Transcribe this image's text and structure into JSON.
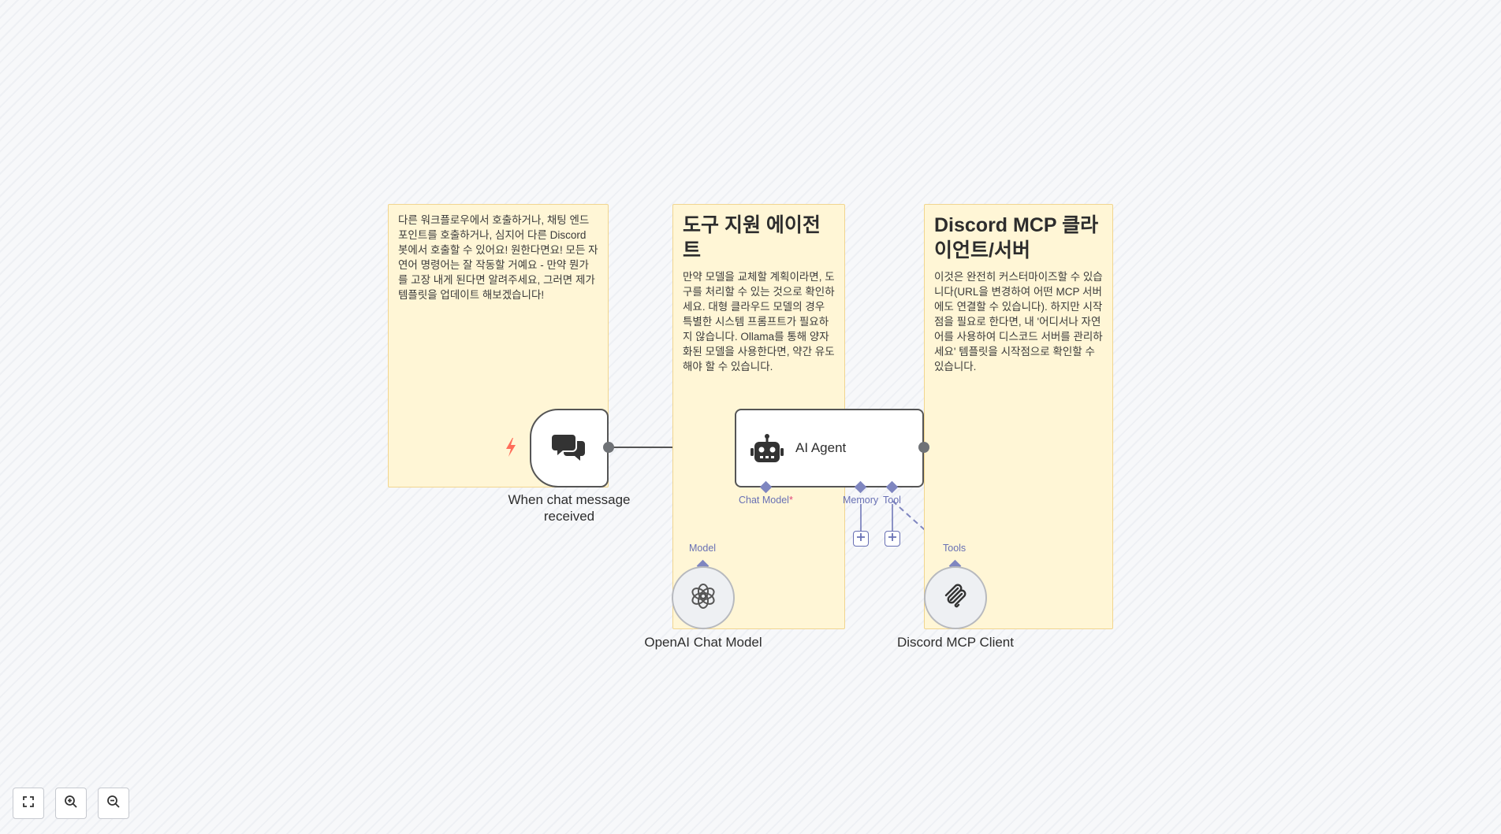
{
  "notes": {
    "trigger_note": {
      "body": "다른 워크플로우에서 호출하거나, 채팅 엔드포인트를 호출하거나, 심지어 다른 Discord 봇에서 호출할 수 있어요! 원한다면요! 모든 자연어 명령어는 잘 작동할 거예요 - 만약 뭔가를 고장 내게 된다면 알려주세요, 그러면 제가 템플릿을 업데이트 해보겠습니다!"
    },
    "agent_note": {
      "heading": "도구 지원 에이전트",
      "body": "만약 모델을 교체할 계획이라면, 도구를 처리할 수 있는 것으로 확인하세요. 대형 클라우드 모델의 경우 특별한 시스템 프롬프트가 필요하지 않습니다. Ollama를 통해 양자화된 모델을 사용한다면, 약간 유도해야 할 수 있습니다."
    },
    "mcp_note": {
      "heading": "Discord MCP 클라이언트/서버",
      "body": "이것은 완전히 커스터마이즈할 수 있습니다(URL을 변경하여 어떤 MCP 서버에도 연결할 수 있습니다). 하지만 시작점을 필요로 한다면, 내 '어디서나 자연어를 사용하여 디스코드 서버를 관리하세요' 템플릿을 시작점으로 확인할 수 있습니다."
    }
  },
  "nodes": {
    "chat_trigger": {
      "label": "When chat message received",
      "icon": "chat-bubbles-icon",
      "badge_icon": "lightning-icon"
    },
    "ai_agent": {
      "label": "AI Agent",
      "icon": "robot-icon",
      "ports": {
        "chat_model": "Chat Model",
        "chat_model_required": "*",
        "memory": "Memory",
        "tool": "Tool"
      }
    },
    "openai_model": {
      "label": "OpenAI Chat Model",
      "icon": "openai-icon",
      "port_label": "Model"
    },
    "mcp_client": {
      "label": "Discord MCP Client",
      "icon": "mcp-icon",
      "port_label": "Tools"
    }
  },
  "canvas_controls": [
    {
      "name": "fit-view-button",
      "icon": "fit-view-icon"
    },
    {
      "name": "zoom-in-button",
      "icon": "zoom-in-icon"
    },
    {
      "name": "zoom-out-button",
      "icon": "zoom-out-icon"
    }
  ],
  "colors": {
    "sticky_bg": "#fff6d6",
    "connection": "#555555",
    "sub_connection": "#7f86c0",
    "trigger_bolt": "#ff6d5a"
  }
}
